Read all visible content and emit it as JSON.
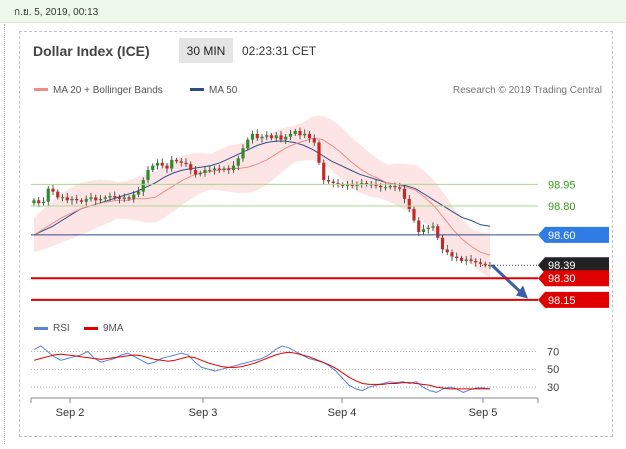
{
  "timestamp": "ก.ย. 5, 2019, 00:13",
  "header": {
    "title": "Dollar Index (ICE)",
    "interval": "30 MIN",
    "time": "02:23:31 CET"
  },
  "legend": {
    "items": [
      {
        "label": "MA 20 + Bollinger Bands",
        "color": "#f08a8a"
      },
      {
        "label": "MA 50",
        "color": "#2d4c8a"
      }
    ],
    "credit": "Research © 2019 Trading Central"
  },
  "rsi_legend": {
    "items": [
      {
        "label": "RSI",
        "color": "#5b82d8"
      },
      {
        "label": "9MA",
        "color": "#e00000"
      }
    ]
  },
  "chart_data": {
    "type": "line",
    "price_panel": {
      "ylim": [
        98.08,
        99.5
      ],
      "price_series": [
        98.84,
        98.82,
        98.83,
        98.92,
        98.9,
        98.86,
        98.86,
        98.84,
        98.85,
        98.84,
        98.83,
        98.85,
        98.86,
        98.84,
        98.85,
        98.86,
        98.87,
        98.86,
        98.85,
        98.86,
        98.85,
        98.88,
        98.9,
        98.98,
        99.05,
        99.08,
        99.1,
        99.08,
        99.06,
        99.12,
        99.11,
        99.1,
        99.09,
        99.05,
        99.02,
        99.03,
        99.05,
        99.05,
        99.06,
        99.05,
        99.06,
        99.05,
        99.08,
        99.13,
        99.2,
        99.26,
        99.3,
        99.27,
        99.28,
        99.29,
        99.27,
        99.29,
        99.26,
        99.28,
        99.3,
        99.32,
        99.29,
        99.3,
        99.27,
        99.24,
        99.1,
        98.98,
        98.97,
        98.96,
        98.95,
        98.94,
        98.95,
        98.94,
        98.95,
        98.96,
        98.95,
        98.95,
        98.94,
        98.93,
        98.93,
        98.94,
        98.93,
        98.92,
        98.85,
        98.78,
        98.7,
        98.62,
        98.64,
        98.65,
        98.66,
        98.58,
        98.5,
        98.48,
        98.45,
        98.44,
        98.42,
        98.43,
        98.42,
        98.41,
        98.4,
        98.39,
        98.39
      ],
      "ma20_series": [
        98.6,
        98.64,
        98.68,
        98.72,
        98.75,
        98.78,
        98.8,
        98.82,
        98.83,
        98.84,
        98.84,
        98.85,
        98.85,
        98.86,
        98.9,
        98.94,
        98.98,
        99.01,
        99.03,
        99.04,
        99.05,
        99.06,
        99.06,
        99.07,
        99.09,
        99.12,
        99.16,
        99.2,
        99.23,
        99.25,
        99.27,
        99.26,
        99.22,
        99.17,
        99.11,
        99.06,
        99.02,
        98.99,
        98.96,
        98.95,
        98.93,
        98.91,
        98.86,
        98.8,
        98.72,
        98.64,
        98.57,
        98.52,
        98.48,
        98.46
      ],
      "ma50_series": [
        98.6,
        98.63,
        98.66,
        98.7,
        98.74,
        98.78,
        98.8,
        98.82,
        98.84,
        98.86,
        98.88,
        98.9,
        98.93,
        98.96,
        99.0,
        99.03,
        99.05,
        99.06,
        99.07,
        99.08,
        99.1,
        99.13,
        99.16,
        99.19,
        99.22,
        99.24,
        99.25,
        99.25,
        99.24,
        99.22,
        99.19,
        99.15,
        99.11,
        99.08,
        99.05,
        99.02,
        99.0,
        98.98,
        98.96,
        98.95,
        98.94,
        98.92,
        98.88,
        98.84,
        98.8,
        98.76,
        98.72,
        98.7,
        98.67,
        98.66
      ],
      "levels": [
        {
          "label": "98.95",
          "value": 98.95,
          "style": "green"
        },
        {
          "label": "98.80",
          "value": 98.8,
          "style": "green"
        },
        {
          "label": "98.60",
          "value": 98.6,
          "style": "blue"
        },
        {
          "label": "98.39",
          "value": 98.39,
          "style": "dark"
        },
        {
          "label": "98.30",
          "value": 98.3,
          "style": "red"
        },
        {
          "label": "98.15",
          "value": 98.15,
          "style": "red"
        }
      ],
      "forecast_arrow": {
        "from": 98.39,
        "to": 98.16
      }
    },
    "rsi_panel": {
      "ylim": [
        20,
        85
      ],
      "ticks": [
        {
          "label": "70",
          "value": 70
        },
        {
          "label": "50",
          "value": 50
        },
        {
          "label": "30",
          "value": 30
        }
      ],
      "rsi_series": [
        72,
        76,
        70,
        64,
        60,
        62,
        64,
        66,
        70,
        62,
        58,
        60,
        62,
        66,
        68,
        64,
        60,
        56,
        58,
        62,
        64,
        66,
        68,
        66,
        58,
        52,
        50,
        48,
        50,
        52,
        54,
        56,
        58,
        60,
        62,
        66,
        72,
        76,
        74,
        70,
        66,
        62,
        60,
        58,
        54,
        48,
        40,
        32,
        28,
        26,
        30,
        32,
        34,
        36,
        35,
        36,
        34,
        36,
        30,
        26,
        24,
        28,
        30,
        28,
        24,
        27,
        29,
        29,
        28
      ],
      "ma9_series": [
        60,
        62,
        64,
        66,
        67,
        66,
        65,
        64,
        63,
        62,
        61,
        62,
        63,
        64,
        65,
        66,
        65,
        63,
        61,
        60,
        59,
        60,
        62,
        64,
        63,
        60,
        57,
        55,
        53,
        52,
        52,
        53,
        55,
        57,
        60,
        63,
        66,
        68,
        69,
        68,
        66,
        64,
        61,
        58,
        55,
        51,
        46,
        41,
        37,
        34,
        33,
        33,
        33,
        34,
        34,
        35,
        35,
        34,
        33,
        32,
        30,
        29,
        28,
        28,
        28,
        28,
        28,
        28,
        28
      ]
    },
    "x_tick_labels": [
      "Sep 2",
      "Sep 3",
      "Sep 4",
      "Sep 5"
    ]
  }
}
